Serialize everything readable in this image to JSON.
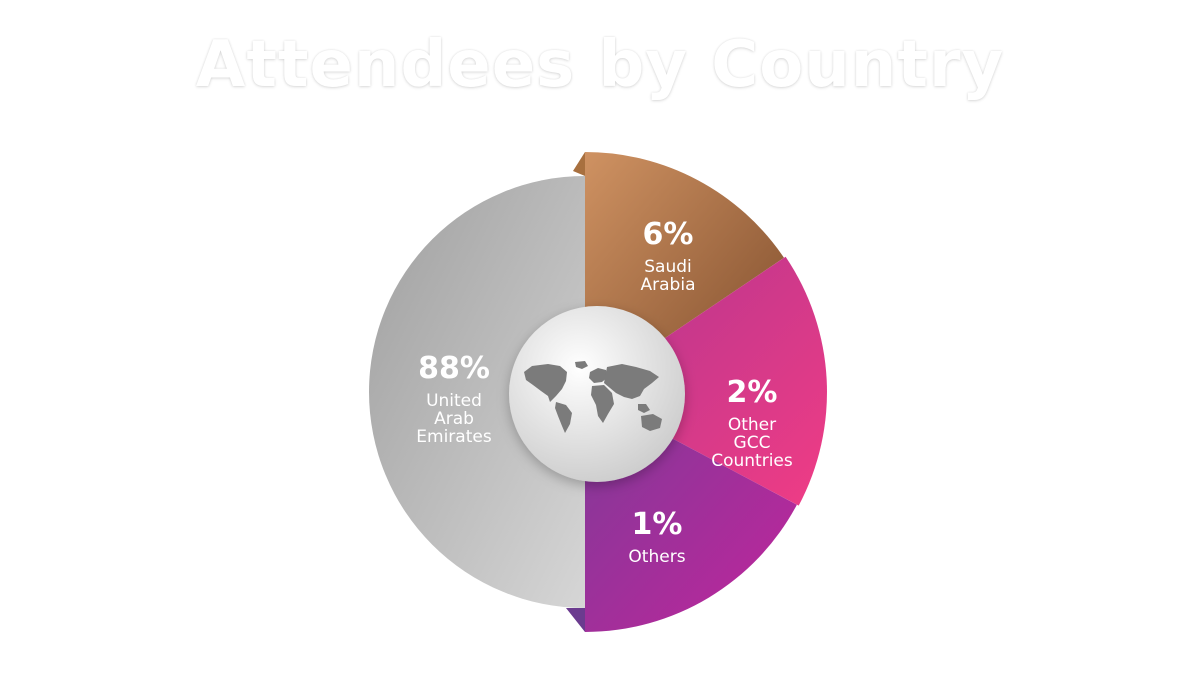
{
  "title": "Attendees by Country",
  "chart_data": {
    "type": "pie",
    "title": "Attendees by Country",
    "slices": [
      {
        "label": "United Arab Emirates",
        "label_lines": [
          "United",
          "Arab",
          "Emirates"
        ],
        "value": 88,
        "display": "88%",
        "colors": [
          "#a4a4a4",
          "#d4d4d4"
        ]
      },
      {
        "label": "Saudi Arabia",
        "label_lines": [
          "Saudi",
          "Arabia"
        ],
        "value": 6,
        "display": "6%",
        "colors": [
          "#c8895a",
          "#8a5532"
        ]
      },
      {
        "label": "Other GCC Countries",
        "label_lines": [
          "Other",
          "GCC",
          "Countries"
        ],
        "value": 2,
        "display": "2%",
        "colors": [
          "#b3388f",
          "#ee3a86"
        ]
      },
      {
        "label": "Others",
        "label_lines": [
          "Others"
        ],
        "value": 1,
        "display": "1%",
        "colors": [
          "#8a3599",
          "#b0289e"
        ]
      }
    ],
    "center_icon": "world-map-icon"
  }
}
